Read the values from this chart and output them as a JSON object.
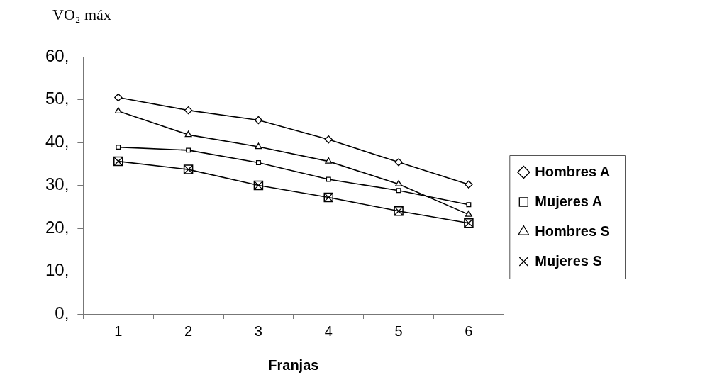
{
  "chart_data": {
    "type": "line",
    "xlabel": "Franjas",
    "ylabel": "VO₂ máx",
    "categories": [
      "1",
      "2",
      "3",
      "4",
      "5",
      "6"
    ],
    "ylim": [
      0,
      60
    ],
    "yticks": [
      {
        "value": 0,
        "label": "0,"
      },
      {
        "value": 10,
        "label": "10,"
      },
      {
        "value": 20,
        "label": "20,"
      },
      {
        "value": 30,
        "label": "30,"
      },
      {
        "value": 40,
        "label": "40,"
      },
      {
        "value": 50,
        "label": "50,"
      },
      {
        "value": 60,
        "label": "60,"
      }
    ],
    "grid": false,
    "legend": "right",
    "line_style": "solid",
    "series": [
      {
        "name": "Hombres A",
        "color": "#000000",
        "marker": "diamond",
        "values": [
          50.5,
          47.5,
          45.2,
          40.7,
          35.4,
          30.2
        ]
      },
      {
        "name": "Mujeres A",
        "color": "#000000",
        "marker": "square",
        "values": [
          38.9,
          38.2,
          35.3,
          31.4,
          28.8,
          25.5
        ]
      },
      {
        "name": "Hombres S",
        "color": "#000000",
        "marker": "triangle",
        "values": [
          47.3,
          41.8,
          39.0,
          35.6,
          30.3,
          23.2
        ]
      },
      {
        "name": "Mujeres S",
        "color": "#000000",
        "marker": "cross",
        "values": [
          35.6,
          33.7,
          30.0,
          27.2,
          24.0,
          21.2
        ]
      }
    ]
  }
}
